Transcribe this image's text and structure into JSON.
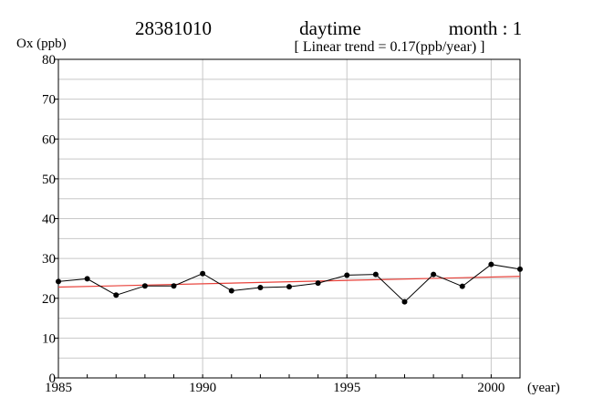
{
  "header": {
    "station": "28381010",
    "period": "daytime",
    "month": "month : 1",
    "trend": "[ Linear trend = 0.17(ppb/year) ]"
  },
  "chart_data": {
    "type": "line",
    "ylabel": "Ox (ppb)",
    "xlabel": "(year)",
    "xlim": [
      1985,
      2001
    ],
    "ylim": [
      0,
      80
    ],
    "x_ticks": [
      1985,
      1990,
      1995,
      2000
    ],
    "y_ticks": [
      0,
      10,
      20,
      30,
      40,
      50,
      60,
      70,
      80
    ],
    "grid": true,
    "series": [
      {
        "color": "#000000",
        "marker": "circle",
        "x": [
          1985,
          1986,
          1987,
          1988,
          1989,
          1990,
          1991,
          1992,
          1993,
          1994,
          1995,
          1996,
          1997,
          1998,
          1999,
          2000,
          2001
        ],
        "values": [
          24.2,
          24.9,
          20.8,
          23.1,
          23.1,
          26.2,
          21.9,
          22.7,
          22.9,
          23.8,
          25.8,
          26.0,
          19.1,
          26.0,
          23.0,
          28.5,
          27.3
        ]
      }
    ],
    "trend_line": {
      "color": "#e8413a",
      "x": [
        1985,
        2001
      ],
      "values": [
        22.8,
        25.5
      ]
    }
  }
}
